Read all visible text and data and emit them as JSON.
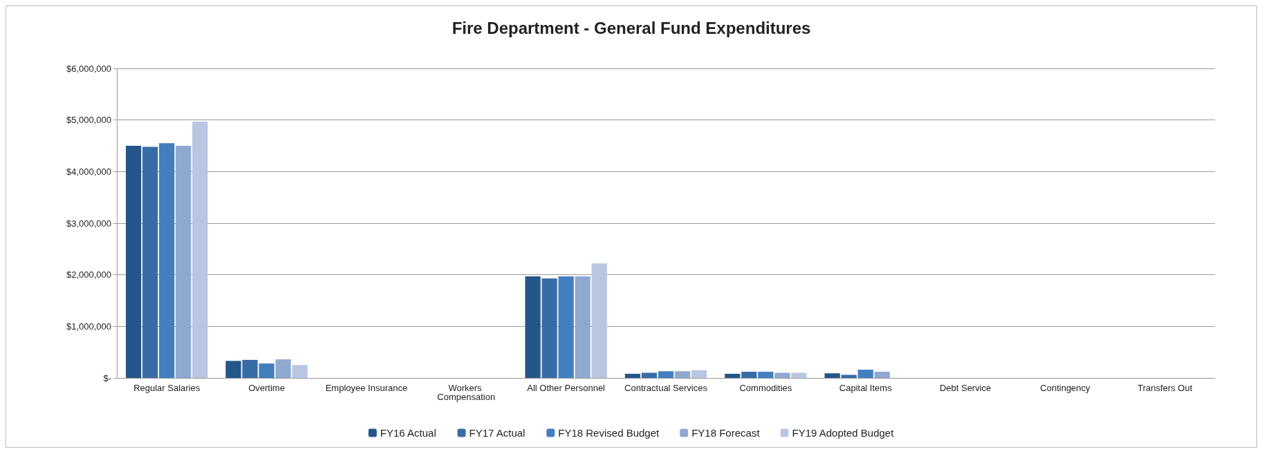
{
  "chart_data": {
    "type": "bar",
    "title": "Fire Department - General Fund Expenditures",
    "categories": [
      "Regular Salaries",
      "Overtime",
      "Employee Insurance",
      "Workers Compensation",
      "All Other Personnel",
      "Contractual Services",
      "Commodities",
      "Capital Items",
      "Debt Service",
      "Contingency",
      "Transfers Out"
    ],
    "series": [
      {
        "name": "FY16 Actual",
        "color": "#24568a",
        "values": [
          4500000,
          330000,
          0,
          0,
          1970000,
          80000,
          80000,
          90000,
          0,
          0,
          0
        ]
      },
      {
        "name": "FY17 Actual",
        "color": "#386ca7",
        "values": [
          4480000,
          350000,
          0,
          0,
          1930000,
          100000,
          120000,
          60000,
          0,
          0,
          0
        ]
      },
      {
        "name": "FY18 Revised Budget",
        "color": "#437ebf",
        "values": [
          4550000,
          280000,
          0,
          0,
          1970000,
          130000,
          120000,
          160000,
          0,
          0,
          0
        ]
      },
      {
        "name": "FY18 Forecast",
        "color": "#8fa8d0",
        "values": [
          4500000,
          360000,
          0,
          0,
          1970000,
          130000,
          100000,
          120000,
          0,
          0,
          0
        ]
      },
      {
        "name": "FY19 Adopted Budget",
        "color": "#b9c6e2",
        "values": [
          4970000,
          250000,
          0,
          0,
          2220000,
          150000,
          100000,
          0,
          0,
          0,
          0
        ]
      }
    ],
    "ylim": [
      0,
      6000000
    ],
    "yticks": [
      {
        "value": 0,
        "label": "$-"
      },
      {
        "value": 1000000,
        "label": "$1,000,000"
      },
      {
        "value": 2000000,
        "label": "$2,000,000"
      },
      {
        "value": 3000000,
        "label": "$3,000,000"
      },
      {
        "value": 4000000,
        "label": "$4,000,000"
      },
      {
        "value": 5000000,
        "label": "$5,000,000"
      },
      {
        "value": 6000000,
        "label": "$6,000,000"
      }
    ],
    "grid": "y",
    "legend": "bottom"
  }
}
